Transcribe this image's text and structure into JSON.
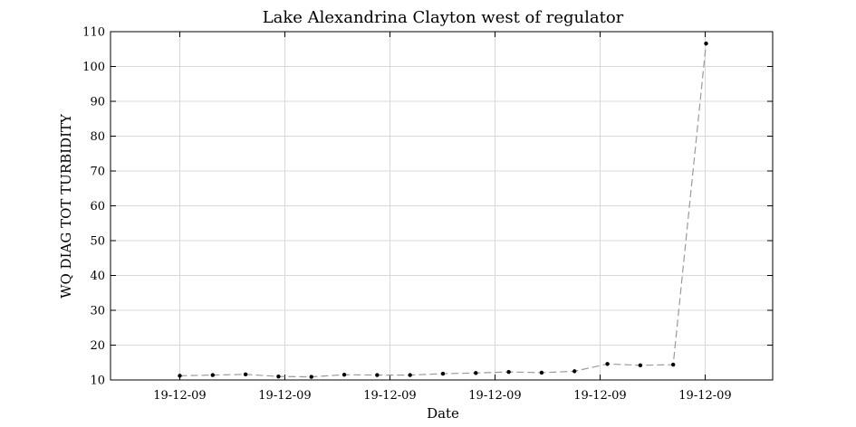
{
  "chart_data": {
    "type": "line",
    "title": "Lake Alexandrina Clayton west of regulator",
    "xlabel": "Date",
    "ylabel": "WQ DIAG TOT TURBIDITY",
    "ylim": [
      10,
      110
    ],
    "yticks": [
      10,
      20,
      30,
      40,
      50,
      60,
      70,
      80,
      90,
      100,
      110
    ],
    "x_tick_labels": [
      "19-12-09",
      "19-12-09",
      "19-12-09",
      "19-12-09",
      "19-12-09",
      "19-12-09"
    ],
    "grid": true,
    "series": [
      {
        "values": [
          11.2,
          11.4,
          11.6,
          11.0,
          10.9,
          11.5,
          11.4,
          11.4,
          11.8,
          12.0,
          12.3,
          12.1,
          12.5,
          14.6,
          14.2,
          14.4,
          106.6
        ]
      }
    ]
  }
}
